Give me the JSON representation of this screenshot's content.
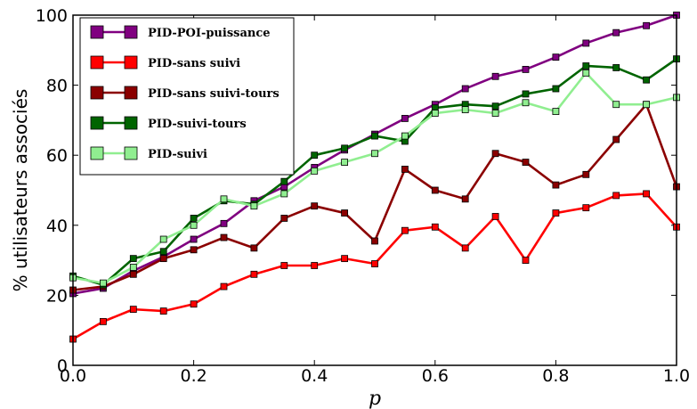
{
  "chart_data": {
    "type": "line",
    "xlabel": "p",
    "ylabel": "% utilisateurs associés",
    "xlim": [
      0.0,
      1.0
    ],
    "ylim": [
      0,
      100
    ],
    "x_ticks": [
      "0.0",
      "0.2",
      "0.4",
      "0.6",
      "0.8",
      "1.0"
    ],
    "y_ticks": [
      "0",
      "20",
      "40",
      "60",
      "80",
      "100"
    ],
    "legend_position": "top-left",
    "x": [
      0.0,
      0.05,
      0.1,
      0.15,
      0.2,
      0.25,
      0.3,
      0.35,
      0.4,
      0.45,
      0.5,
      0.55,
      0.6,
      0.65,
      0.7,
      0.75,
      0.8,
      0.85,
      0.9,
      0.95,
      1.0
    ],
    "series": [
      {
        "name": "PID-POI-puissance",
        "color": "#800080",
        "values": [
          20.5,
          22,
          27,
          31,
          36,
          40.5,
          47,
          51,
          56.5,
          61.5,
          66,
          70.5,
          74.5,
          79,
          82.5,
          84.5,
          88,
          92,
          95,
          97,
          100
        ]
      },
      {
        "name": "PID-sans suivi",
        "color": "#ff0000",
        "values": [
          7.5,
          12.5,
          16,
          15.5,
          17.5,
          22.5,
          26,
          28.5,
          28.5,
          30.5,
          29,
          38.5,
          39.5,
          33.5,
          42.5,
          30,
          43.5,
          45,
          48.5,
          49,
          39.5
        ]
      },
      {
        "name": "PID-sans suivi-tours",
        "color": "#8b0000",
        "values": [
          21.5,
          22.5,
          26,
          30.5,
          33,
          36.5,
          33.5,
          42,
          45.5,
          43.5,
          35.5,
          56,
          50,
          47.5,
          60.5,
          58,
          51.5,
          54.5,
          64.5,
          74.5,
          51
        ]
      },
      {
        "name": "PID-suivi-tours",
        "color": "#006400",
        "values": [
          25.5,
          23,
          30.5,
          32.5,
          42,
          47,
          46,
          52.5,
          60,
          62,
          65.5,
          64,
          73.5,
          74.5,
          74,
          77.5,
          79,
          85.5,
          85,
          81.5,
          87.5
        ]
      },
      {
        "name": "PID-suivi",
        "color": "#90ee90",
        "values": [
          25,
          23.5,
          28,
          36,
          40,
          47.5,
          45.5,
          49,
          55.5,
          58,
          60.5,
          65.5,
          72,
          73,
          72,
          75,
          72.5,
          83.5,
          74.5,
          74.5,
          76.5
        ]
      }
    ]
  }
}
